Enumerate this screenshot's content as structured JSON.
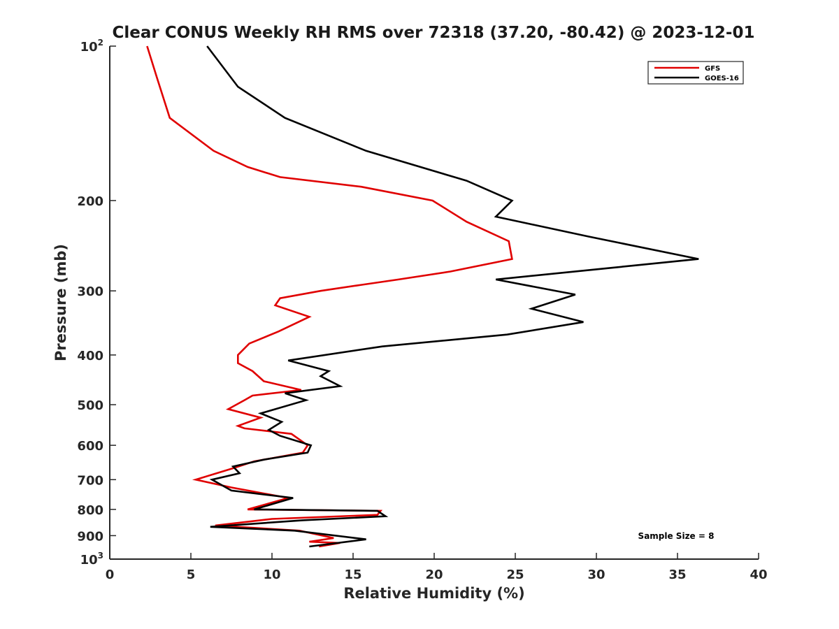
{
  "chart_data": {
    "type": "line",
    "title": "Clear CONUS Weekly RH RMS over 72318 (37.20, -80.42) @ 2023-12-01",
    "xlabel": "Relative Humidity (%)",
    "ylabel": "Pressure (mb)",
    "xlim": [
      0,
      40
    ],
    "ylim": [
      100,
      1000
    ],
    "y_scale": "log",
    "y_reversed": true,
    "x_ticks": [
      "0",
      "5",
      "10",
      "15",
      "20",
      "25",
      "30",
      "35",
      "40"
    ],
    "y_ticks": [
      {
        "value": 100,
        "base": "10",
        "exp": "2"
      },
      {
        "value": 200,
        "label": "200"
      },
      {
        "value": 300,
        "label": "300"
      },
      {
        "value": 400,
        "label": "400"
      },
      {
        "value": 500,
        "label": "500"
      },
      {
        "value": 600,
        "label": "600"
      },
      {
        "value": 700,
        "label": "700"
      },
      {
        "value": 800,
        "label": "800"
      },
      {
        "value": 900,
        "label": "900"
      },
      {
        "value": 1000,
        "base": "10",
        "exp": "3"
      }
    ],
    "grid": false,
    "legend_position": "top-right",
    "annotation": "Sample Size = 8",
    "series": [
      {
        "name": "GFS",
        "color": "#e00000",
        "points": [
          [
            2.3,
            100
          ],
          [
            2.9,
            115
          ],
          [
            3.7,
            138
          ],
          [
            6.4,
            160
          ],
          [
            8.5,
            172
          ],
          [
            10.5,
            180
          ],
          [
            15.5,
            188
          ],
          [
            19.9,
            200
          ],
          [
            22.0,
            220
          ],
          [
            24.6,
            240
          ],
          [
            24.8,
            260
          ],
          [
            21.0,
            275
          ],
          [
            17.8,
            285
          ],
          [
            15.5,
            292
          ],
          [
            13.0,
            300
          ],
          [
            10.5,
            310
          ],
          [
            10.2,
            320
          ],
          [
            12.3,
            337
          ],
          [
            10.4,
            360
          ],
          [
            8.6,
            380
          ],
          [
            7.9,
            400
          ],
          [
            7.9,
            415
          ],
          [
            8.8,
            430
          ],
          [
            9.5,
            450
          ],
          [
            11.8,
            468
          ],
          [
            8.8,
            480
          ],
          [
            8.3,
            490
          ],
          [
            7.3,
            510
          ],
          [
            9.3,
            530
          ],
          [
            7.9,
            550
          ],
          [
            8.3,
            556
          ],
          [
            11.2,
            570
          ],
          [
            12.2,
            600
          ],
          [
            11.9,
            620
          ],
          [
            8.9,
            645
          ],
          [
            7.6,
            665
          ],
          [
            5.3,
            700
          ],
          [
            7.5,
            725
          ],
          [
            11.0,
            760
          ],
          [
            8.5,
            800
          ],
          [
            16.7,
            805
          ],
          [
            16.5,
            820
          ],
          [
            10.0,
            835
          ],
          [
            6.5,
            860
          ],
          [
            11.7,
            880
          ],
          [
            13.8,
            910
          ],
          [
            12.3,
            925
          ],
          [
            14.2,
            930
          ],
          [
            12.9,
            945
          ]
        ]
      },
      {
        "name": "GOES-16",
        "color": "#000000",
        "points": [
          [
            6.0,
            100
          ],
          [
            7.9,
            120
          ],
          [
            10.8,
            138
          ],
          [
            15.8,
            160
          ],
          [
            22.0,
            183
          ],
          [
            24.8,
            200
          ],
          [
            23.8,
            215
          ],
          [
            29.5,
            235
          ],
          [
            36.3,
            260
          ],
          [
            23.8,
            285
          ],
          [
            28.7,
            305
          ],
          [
            26.0,
            325
          ],
          [
            29.2,
            345
          ],
          [
            24.5,
            365
          ],
          [
            16.8,
            385
          ],
          [
            11.0,
            410
          ],
          [
            13.5,
            430
          ],
          [
            13.0,
            440
          ],
          [
            14.2,
            460
          ],
          [
            10.8,
            475
          ],
          [
            12.1,
            490
          ],
          [
            9.3,
            520
          ],
          [
            10.6,
            540
          ],
          [
            9.8,
            560
          ],
          [
            10.5,
            575
          ],
          [
            12.4,
            600
          ],
          [
            12.2,
            620
          ],
          [
            9.5,
            640
          ],
          [
            7.6,
            660
          ],
          [
            8.0,
            680
          ],
          [
            6.3,
            700
          ],
          [
            7.5,
            735
          ],
          [
            11.3,
            760
          ],
          [
            8.9,
            800
          ],
          [
            16.5,
            805
          ],
          [
            17.0,
            825
          ],
          [
            11.9,
            840
          ],
          [
            6.2,
            865
          ],
          [
            11.4,
            880
          ],
          [
            15.8,
            915
          ],
          [
            12.3,
            945
          ]
        ]
      }
    ]
  }
}
